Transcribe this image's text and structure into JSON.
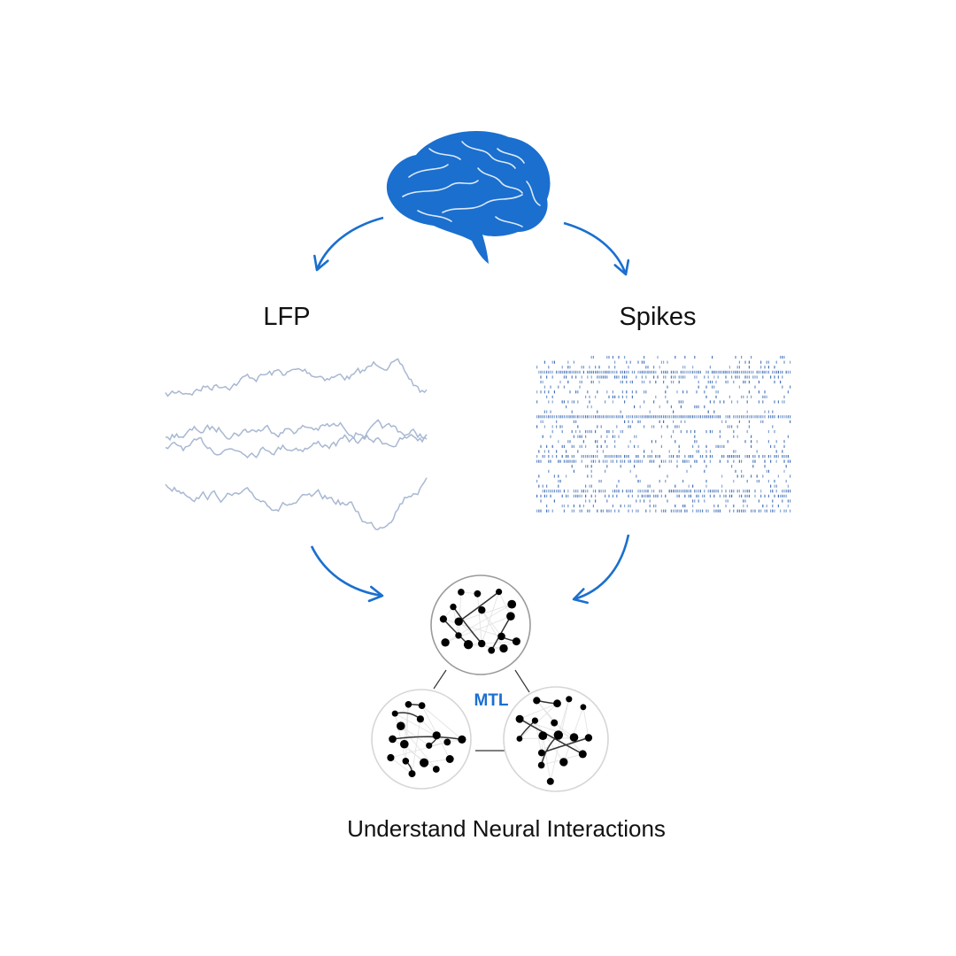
{
  "labels": {
    "lfp": "LFP",
    "spikes": "Spikes",
    "region": "MTL",
    "caption": "Understand Neural Interactions"
  },
  "icons": {
    "source": "brain-icon"
  },
  "colors": {
    "accent": "#1a6fcf",
    "brain": "#1a6fcf",
    "lfp_trace": "#a8b8d2",
    "spike_mark": "#3d6db5",
    "node": "#000000",
    "edge": "#333333",
    "cluster_outline": "#9a9a9a",
    "cluster_outline_faint": "#d6d6d6",
    "link": "#333333"
  }
}
